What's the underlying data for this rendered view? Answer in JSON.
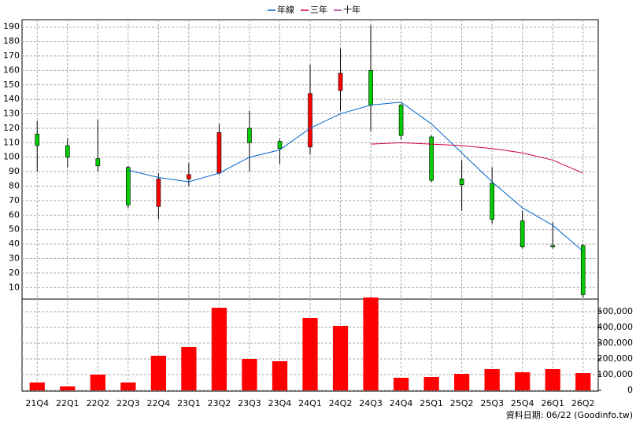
{
  "chart_data": [
    {
      "type": "candlestick",
      "categories": [
        "21Q4",
        "22Q1",
        "22Q2",
        "22Q3",
        "22Q4",
        "23Q1",
        "23Q2",
        "23Q3",
        "23Q4",
        "24Q1",
        "24Q2",
        "24Q3",
        "24Q4",
        "25Q1",
        "25Q2",
        "25Q3",
        "25Q4",
        "26Q1",
        "26Q2"
      ],
      "open": [
        116,
        108,
        99,
        93,
        66,
        85,
        89,
        120,
        111,
        107,
        146,
        160,
        136,
        114,
        85,
        82,
        56,
        39,
        39
      ],
      "high": [
        125,
        113,
        126,
        94,
        89,
        96,
        123,
        132,
        113,
        164,
        175,
        191,
        137,
        115,
        98,
        93,
        63,
        55,
        40
      ],
      "low": [
        90,
        93,
        90,
        65,
        57,
        80,
        88,
        90,
        95,
        102,
        132,
        118,
        112,
        83,
        63,
        54,
        37,
        37,
        3
      ],
      "close": [
        108,
        100,
        94,
        67,
        85,
        88,
        117,
        110,
        106,
        144,
        158,
        136,
        115,
        84,
        81,
        57,
        38,
        38,
        5
      ],
      "up_color": "#ff0000",
      "down_color": "#00cc00",
      "series": [
        {
          "name": "年線",
          "color": "#0066cc",
          "values": [
            null,
            null,
            null,
            91,
            86,
            83,
            89,
            100,
            105,
            120,
            130,
            136,
            138,
            123,
            103,
            83,
            65,
            53,
            35
          ]
        },
        {
          "name": "三年",
          "color": "#cc0044",
          "values": [
            null,
            null,
            null,
            null,
            null,
            null,
            null,
            null,
            null,
            null,
            null,
            109,
            110,
            109,
            108,
            106,
            103,
            98,
            89
          ]
        },
        {
          "name": "十年",
          "color": "#993399",
          "values": [
            null,
            null,
            null,
            null,
            null,
            null,
            null,
            null,
            null,
            null,
            null,
            null,
            null,
            null,
            null,
            null,
            null,
            null,
            null
          ]
        }
      ],
      "ylim": [
        2,
        195
      ],
      "yticks": [
        10,
        20,
        30,
        40,
        50,
        60,
        70,
        80,
        90,
        100,
        110,
        120,
        130,
        140,
        150,
        160,
        170,
        180,
        190
      ],
      "grid": true
    },
    {
      "type": "bar",
      "values": [
        50000,
        25000,
        100000,
        50000,
        220000,
        275000,
        525000,
        200000,
        185000,
        460000,
        410000,
        590000,
        80000,
        85000,
        105000,
        135000,
        115000,
        135000,
        110000
      ],
      "color": "#ff0000",
      "ylim": [
        0,
        600000
      ],
      "yticks": [
        0,
        {
          "value": 100000,
          "label": "100,000"
        },
        {
          "value": 200000,
          "label": "200,000"
        },
        {
          "value": 300000,
          "label": "300,000"
        },
        {
          "value": 400000,
          "label": "400,000"
        },
        {
          "value": 500000,
          "label": "500,000"
        }
      ],
      "grid": true
    }
  ],
  "source": "資料日期: 06/22 (Goodinfo.tw)"
}
